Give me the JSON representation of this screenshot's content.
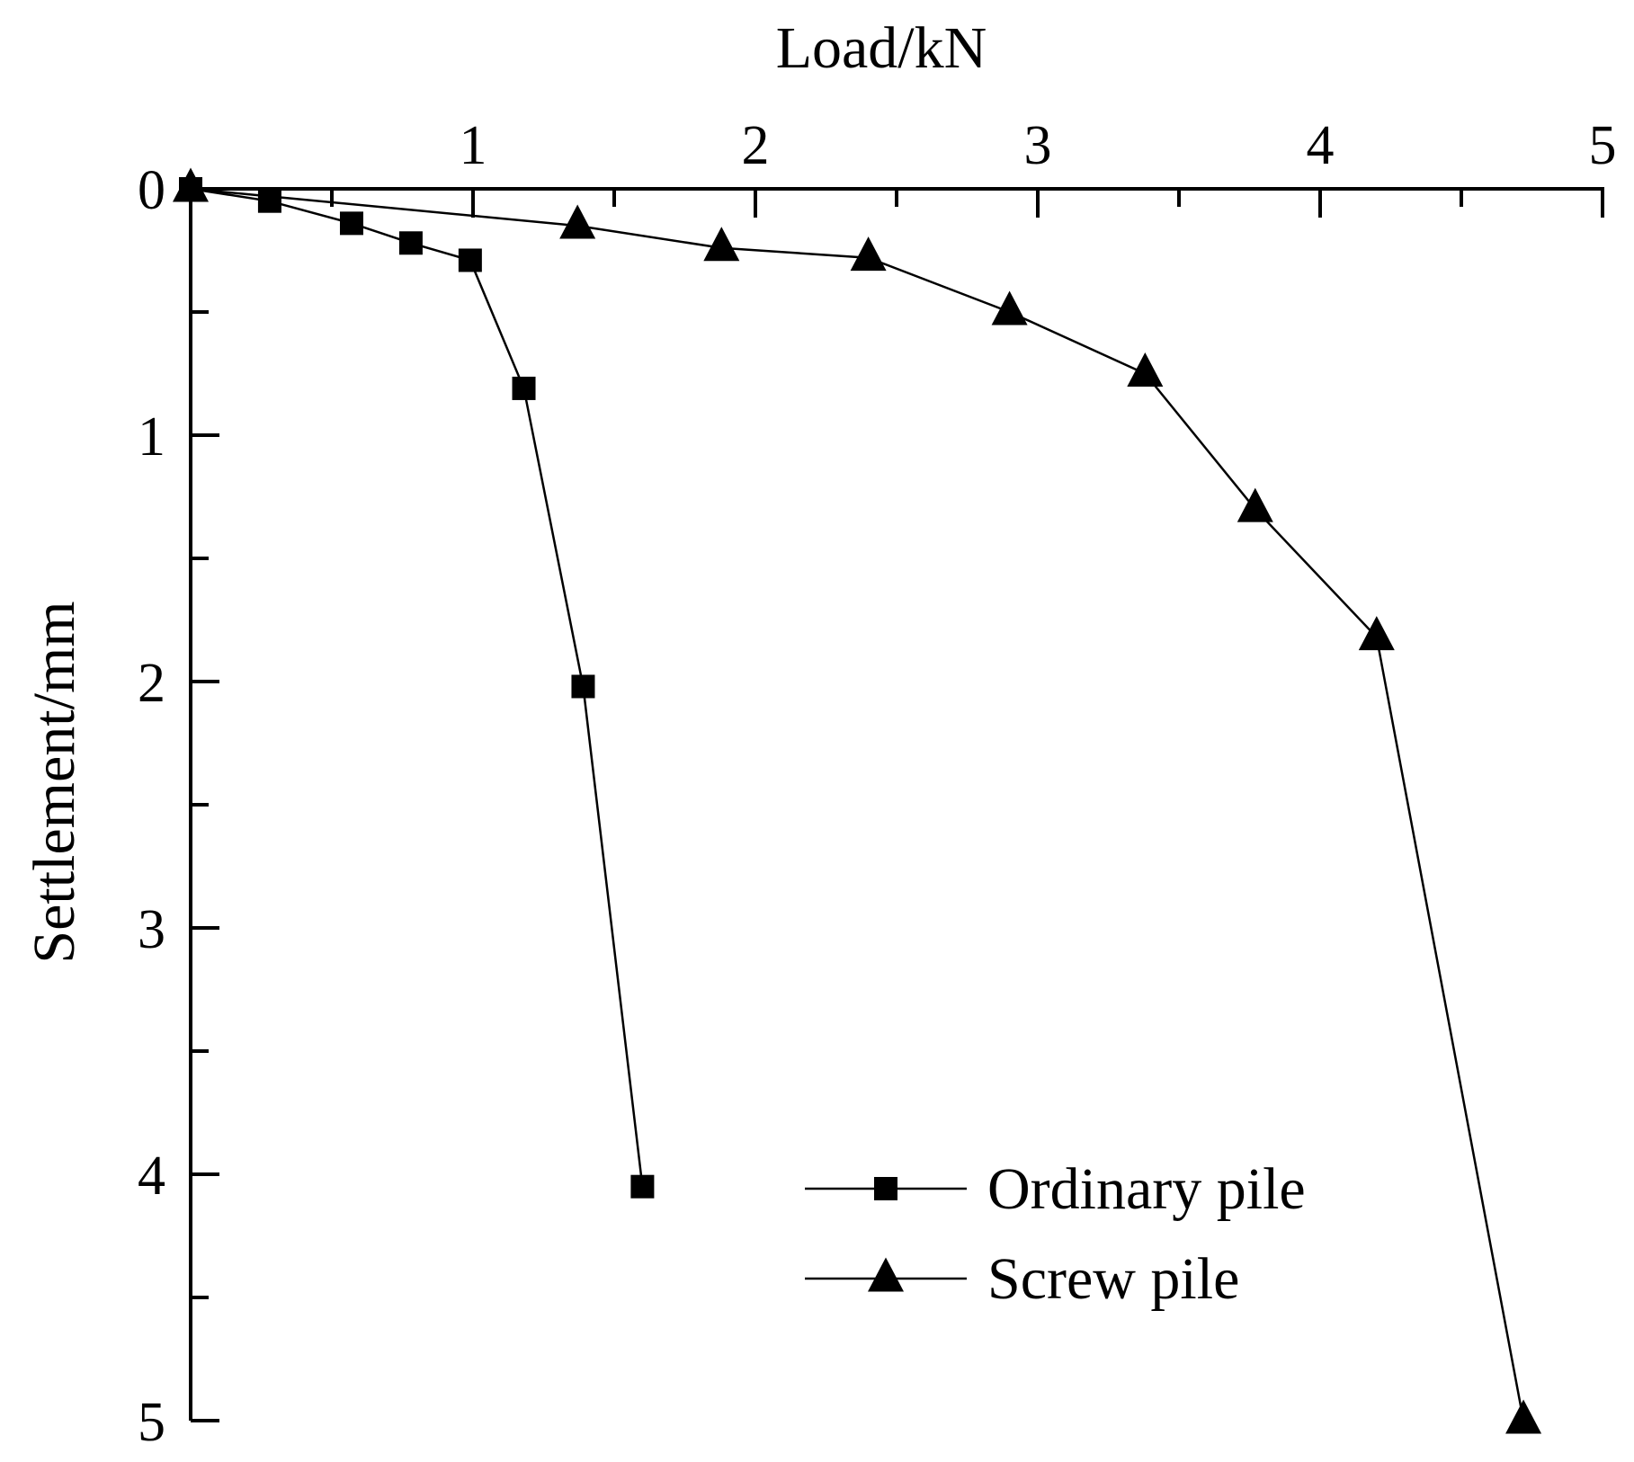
{
  "chart_data": {
    "type": "line",
    "title": "",
    "xlabel": "Load/kN",
    "ylabel": "Settlement/mm",
    "xlim": [
      0,
      5
    ],
    "ylim": [
      0,
      5
    ],
    "x_axis_position": "top",
    "y_axis_inverted": true,
    "x_ticks": [
      "1",
      "2",
      "3",
      "4",
      "5"
    ],
    "y_ticks": [
      "0",
      "1",
      "2",
      "3",
      "4",
      "5"
    ],
    "grid": false,
    "legend_position": "bottom-right",
    "series": [
      {
        "name": "Ordinary pile",
        "marker": "square",
        "color": "#000000",
        "x": [
          0,
          0.28,
          0.57,
          0.78,
          0.99,
          1.18,
          1.39,
          1.6
        ],
        "y": [
          0,
          0.05,
          0.14,
          0.22,
          0.29,
          0.81,
          2.02,
          4.05
        ]
      },
      {
        "name": "Screw pile",
        "marker": "triangle",
        "color": "#000000",
        "x": [
          0,
          1.37,
          1.88,
          2.4,
          2.9,
          3.38,
          3.77,
          4.2,
          4.72
        ],
        "y": [
          0,
          0.15,
          0.24,
          0.28,
          0.5,
          0.75,
          1.3,
          1.82,
          5.0
        ]
      }
    ]
  }
}
